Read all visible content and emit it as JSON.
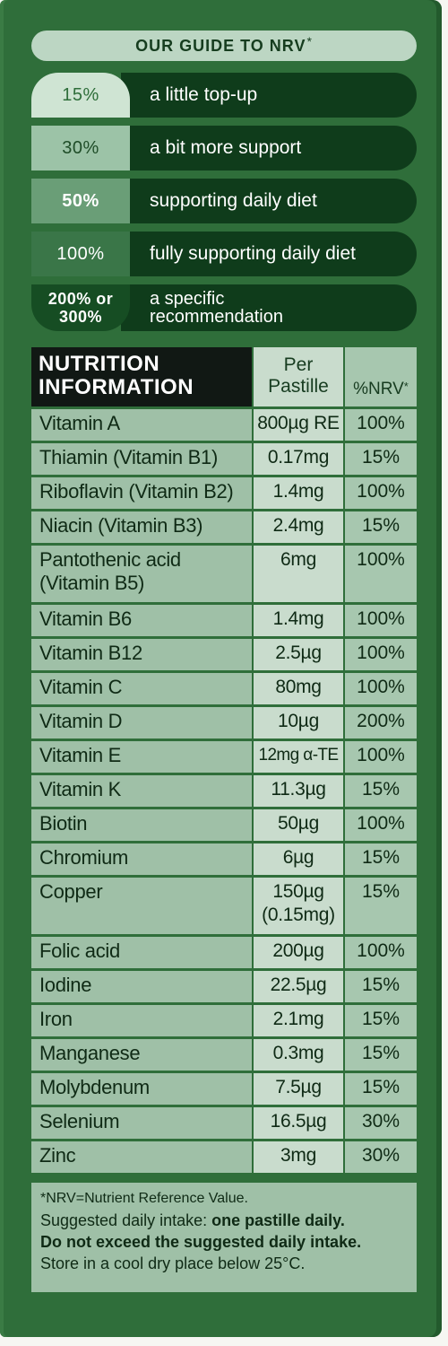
{
  "guide": {
    "title": "OUR GUIDE TO NRV",
    "title_star": "*",
    "rows": [
      {
        "pct": "15%",
        "label": "a little top-up"
      },
      {
        "pct": "30%",
        "label": "a bit more support"
      },
      {
        "pct": "50%",
        "label": "supporting daily diet"
      },
      {
        "pct": "100%",
        "label": "fully supporting daily diet"
      },
      {
        "pct_line1": "200% or",
        "pct_line2": "300%",
        "label_line1": "a specific",
        "label_line2": "recommendation"
      }
    ]
  },
  "table": {
    "header": {
      "name_line1": "NUTRITION",
      "name_line2": "INFORMATION",
      "per_line1": "Per",
      "per_line2": "Pastille",
      "nrv": "%NRV",
      "nrv_star": "*"
    },
    "rows": [
      {
        "name": "Vitamin A",
        "per": "800µg RE",
        "nrv": "100%"
      },
      {
        "name": "Thiamin (Vitamin B1)",
        "per": "0.17mg",
        "nrv": "15%"
      },
      {
        "name": "Riboflavin (Vitamin B2)",
        "per": "1.4mg",
        "nrv": "100%"
      },
      {
        "name": "Niacin (Vitamin B3)",
        "per": "2.4mg",
        "nrv": "15%"
      },
      {
        "name_line1": "Pantothenic acid",
        "name_line2": "(Vitamin B5)",
        "per": "6mg",
        "nrv": "100%"
      },
      {
        "name": "Vitamin B6",
        "per": "1.4mg",
        "nrv": "100%"
      },
      {
        "name": "Vitamin B12",
        "per": "2.5µg",
        "nrv": "100%"
      },
      {
        "name": "Vitamin C",
        "per": "80mg",
        "nrv": "100%"
      },
      {
        "name": "Vitamin D",
        "per": "10µg",
        "nrv": "200%"
      },
      {
        "name": "Vitamin E",
        "per": "12mg α-TE",
        "nrv": "100%"
      },
      {
        "name": "Vitamin K",
        "per": "11.3µg",
        "nrv": "15%"
      },
      {
        "name": "Biotin",
        "per": "50µg",
        "nrv": "100%"
      },
      {
        "name": "Chromium",
        "per": "6µg",
        "nrv": "15%"
      },
      {
        "name": "Copper",
        "per_line1": "150µg",
        "per_line2": "(0.15mg)",
        "nrv": "15%"
      },
      {
        "name": "Folic acid",
        "per": "200µg",
        "nrv": "100%"
      },
      {
        "name": "Iodine",
        "per": "22.5µg",
        "nrv": "15%"
      },
      {
        "name": "Iron",
        "per": "2.1mg",
        "nrv": "15%"
      },
      {
        "name": "Manganese",
        "per": "0.3mg",
        "nrv": "15%"
      },
      {
        "name": "Molybdenum",
        "per": "7.5µg",
        "nrv": "15%"
      },
      {
        "name": "Selenium",
        "per": "16.5µg",
        "nrv": "30%"
      },
      {
        "name": "Zinc",
        "per": "3mg",
        "nrv": "30%"
      }
    ]
  },
  "footer": {
    "nrv_note": "*NRV=Nutrient Reference Value.",
    "intake_prefix": "Suggested daily intake: ",
    "intake_bold": "one pastille daily.",
    "warning": "Do not exceed the suggested daily intake.",
    "storage": "Store in a cool dry place below 25°C."
  }
}
